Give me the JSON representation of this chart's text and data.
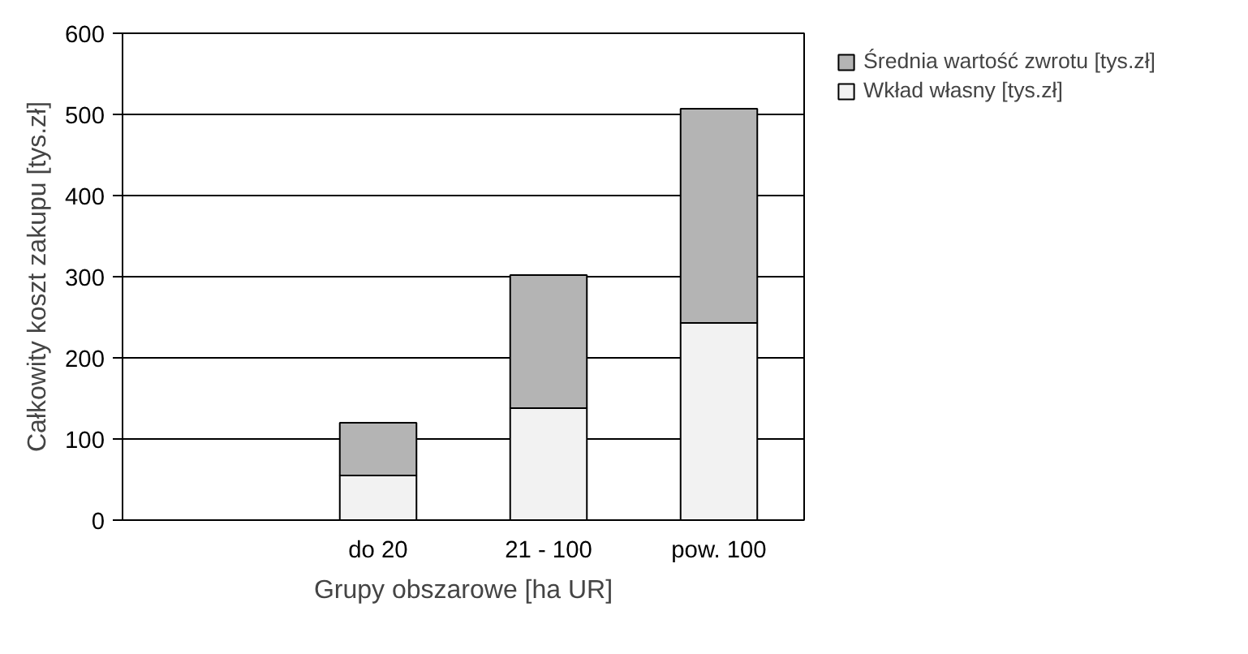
{
  "chart_data": {
    "type": "bar",
    "stacked": true,
    "xlabel": "Grupy obszarowe [ha UR]",
    "ylabel": "Całkowity koszt zakupu [tys.zł]",
    "categories": [
      null,
      "do 20",
      "21 - 100",
      "pow. 100"
    ],
    "series": [
      {
        "name": "Wkład własny [tys.zł]",
        "color": "#f2f2f2",
        "values": [
          null,
          55,
          138,
          243
        ]
      },
      {
        "name": "Średnia wartość zwrotu [tys.zł]",
        "color": "#b4b4b4",
        "values": [
          null,
          65,
          164,
          264
        ]
      }
    ],
    "ylim": [
      0,
      600
    ],
    "yticks": [
      0,
      100,
      200,
      300,
      400,
      500,
      600
    ],
    "grid": "y",
    "legend": "right"
  }
}
